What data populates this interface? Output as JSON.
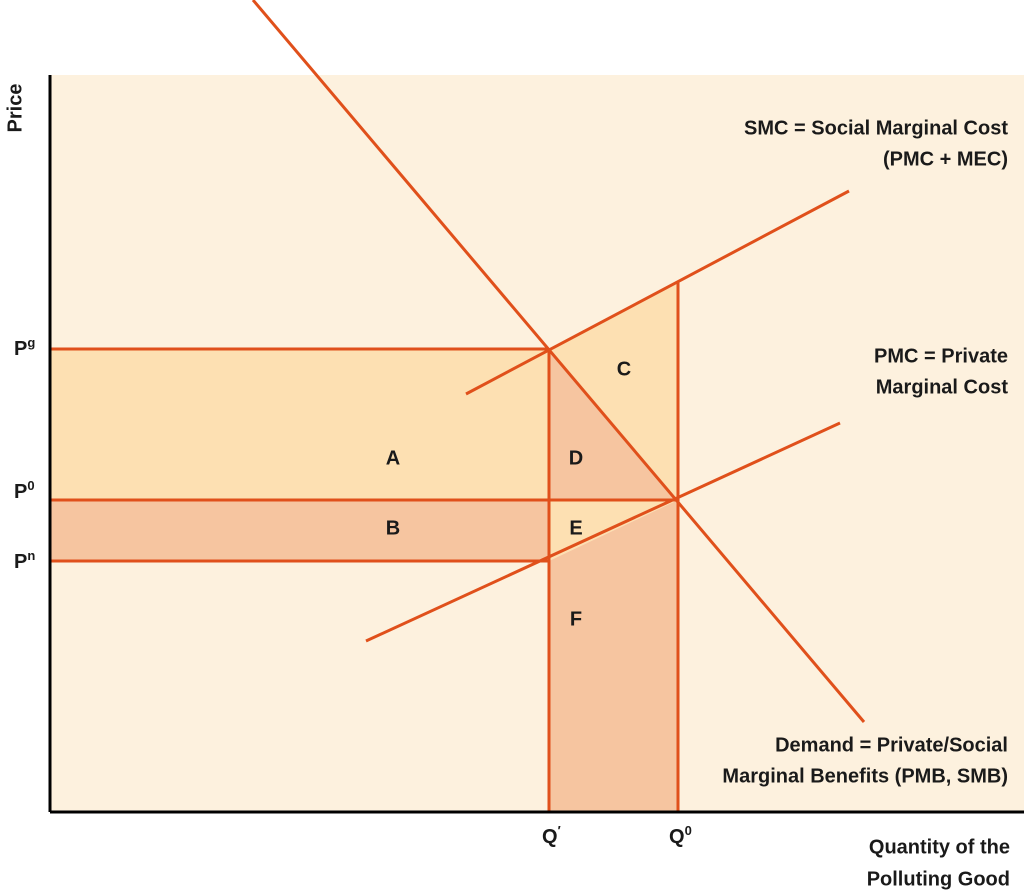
{
  "axes": {
    "y_title": "Price",
    "x_title": [
      "Quantity of the",
      "Polluting Good"
    ]
  },
  "prices": [
    {
      "base": "P",
      "sup": "g"
    },
    {
      "base": "P",
      "sup": "0"
    },
    {
      "base": "P",
      "sup": "n"
    }
  ],
  "quantities": [
    {
      "base": "Q",
      "sup": "′"
    },
    {
      "base": "Q",
      "sup": "0"
    }
  ],
  "areas": [
    "A",
    "B",
    "C",
    "D",
    "E",
    "F"
  ],
  "curves": {
    "smc": [
      "SMC = Social Marginal Cost",
      "(PMC + MEC)"
    ],
    "pmc": [
      "PMC = Private",
      "Marginal Cost"
    ],
    "demand": [
      "Demand = Private/Social",
      "Marginal Benefits (PMB, SMB)"
    ]
  }
}
